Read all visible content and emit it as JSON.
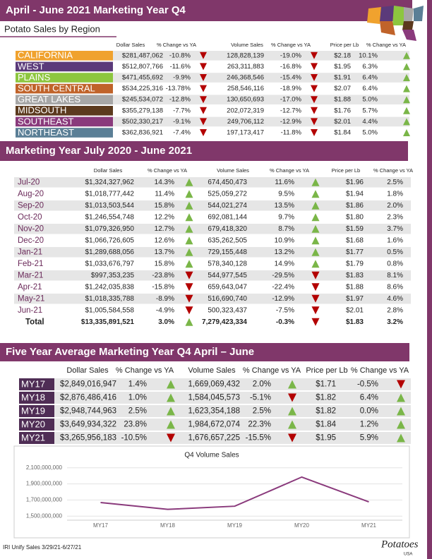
{
  "header": {
    "title": "April - June 2021 Marketing Year Q4"
  },
  "regions": {
    "subtitle": "Potato Sales by Region",
    "columns": [
      "Dollar Sales",
      "% Change vs YA",
      "Volume Sales",
      "% Change vs YA",
      "Price per Lb",
      "% Change vs YA"
    ],
    "rows": [
      {
        "name": "CALIFORNIA",
        "color": "#f0a22e",
        "cells": [
          "$281,487,062",
          "-10.8%",
          "128,828,139",
          "-19.0%",
          "$2.18",
          "10.1%"
        ]
      },
      {
        "name": "WEST",
        "color": "#5b3a7a",
        "cells": [
          "$512,807,766",
          "-11.6%",
          "263,311,883",
          "-16.8%",
          "$1.95",
          "6.3%"
        ]
      },
      {
        "name": "PLAINS",
        "color": "#8dc63f",
        "cells": [
          "$471,455,692",
          "-9.9%",
          "246,368,546",
          "-15.4%",
          "$1.91",
          "6.4%"
        ]
      },
      {
        "name": "SOUTH CENTRAL",
        "color": "#c0632a",
        "cells": [
          "$534,225,316",
          "-13.78%",
          "258,546,116",
          "-18.9%",
          "$2.07",
          "6.4%"
        ]
      },
      {
        "name": "GREAT LAKES",
        "color": "#a7a7a7",
        "cells": [
          "$245,534,072",
          "-12.8%",
          "130,650,693",
          "-17.0%",
          "$1.88",
          "5.0%"
        ]
      },
      {
        "name": "MIDSOUTH",
        "color": "#5c3a1e",
        "cells": [
          "$355,279,138",
          "-7.7%",
          "202,072,319",
          "-12.7%",
          "$1.76",
          "5.7%"
        ]
      },
      {
        "name": "SOUTHEAST",
        "color": "#8a3a7c",
        "cells": [
          "$502,330,217",
          "-9.1%",
          "249,706,112",
          "-12.9%",
          "$2.01",
          "4.4%"
        ]
      },
      {
        "name": "NORTHEAST",
        "color": "#5b7f96",
        "cells": [
          "$362,836,921",
          "-7.4%",
          "197,173,417",
          "-11.8%",
          "$1.84",
          "5.0%"
        ]
      }
    ]
  },
  "marketing_year": {
    "title": "Marketing Year July 2020 - June 2021",
    "columns": [
      "Dollar Sales",
      "% Change vs YA",
      "Volume Sales",
      "% Change vs YA",
      "Price per Lb",
      "% Change vs YA"
    ],
    "rows": [
      {
        "name": "Jul-20",
        "cells": [
          "$1,324,327,962",
          "14.3%",
          "674,450,473",
          "11.6%",
          "$1.96",
          "2.5%"
        ]
      },
      {
        "name": "Aug-20",
        "cells": [
          "$1,018,777,442",
          "11.4%",
          "525,059,272",
          "9.5%",
          "$1.94",
          "1.8%"
        ]
      },
      {
        "name": "Sep-20",
        "cells": [
          "$1,013,503,544",
          "15.8%",
          "544,021,274",
          "13.5%",
          "$1.86",
          "2.0%"
        ]
      },
      {
        "name": "Oct-20",
        "cells": [
          "$1,246,554,748",
          "12.2%",
          "692,081,144",
          "9.7%",
          "$1.80",
          "2.3%"
        ]
      },
      {
        "name": "Nov-20",
        "cells": [
          "$1,079,326,950",
          "12.7%",
          "679,418,320",
          "8.7%",
          "$1.59",
          "3.7%"
        ]
      },
      {
        "name": "Dec-20",
        "cells": [
          "$1,066,726,605",
          "12.6%",
          "635,262,505",
          "10.9%",
          "$1.68",
          "1.6%"
        ]
      },
      {
        "name": "Jan-21",
        "cells": [
          "$1,289,688,056",
          "13.7%",
          "729,155,448",
          "13.2%",
          "$1.77",
          "0.5%"
        ]
      },
      {
        "name": "Feb-21",
        "cells": [
          "$1,033,676,797",
          "15.8%",
          "578,340,128",
          "14.9%",
          "$1.79",
          "0.8%"
        ]
      },
      {
        "name": "Mar-21",
        "cells": [
          "$997,353,235",
          "-23.8%",
          "544,977,545",
          "-29.5%",
          "$1.83",
          "8.1%"
        ]
      },
      {
        "name": "Apr-21",
        "cells": [
          "$1,242,035,838",
          "-15.8%",
          "659,643,047",
          "-22.4%",
          "$1.88",
          "8.6%"
        ]
      },
      {
        "name": "May-21",
        "cells": [
          "$1,018,335,788",
          "-8.9%",
          "516,690,740",
          "-12.9%",
          "$1.97",
          "4.6%"
        ]
      },
      {
        "name": "Jun-21",
        "cells": [
          "$1,005,584,558",
          "-4.9%",
          "500,323,437",
          "-7.5%",
          "$2.01",
          "2.8%"
        ]
      },
      {
        "name": "Total",
        "cells": [
          "$13,335,891,521",
          "3.0%",
          "7,279,423,334",
          "-0.3%",
          "$1.83",
          "3.2%"
        ]
      }
    ]
  },
  "five_year": {
    "title": "Five Year Average Marketing Year Q4 April – June",
    "columns": [
      "Dollar Sales",
      "% Change vs YA",
      "Volume Sales",
      "% Change vs YA",
      "Price per Lb",
      "% Change vs YA"
    ],
    "rows": [
      {
        "name": "MY17",
        "cells": [
          "$2,849,016,947",
          "1.4%",
          "1,669,069,432",
          "2.0%",
          "$1.71",
          "-0.5%"
        ]
      },
      {
        "name": "MY18",
        "cells": [
          "$2,876,486,416",
          "1.0%",
          "1,584,045,573",
          "-5.1%",
          "$1.82",
          "6.4%"
        ]
      },
      {
        "name": "MY19",
        "cells": [
          "$2,948,744,963",
          "2.5%",
          "1,623,354,188",
          "2.5%",
          "$1.82",
          "0.0%"
        ]
      },
      {
        "name": "MY20",
        "cells": [
          "$3,649,934,322",
          "23.8%",
          "1,984,672,074",
          "22.3%",
          "$1.84",
          "1.2%"
        ]
      },
      {
        "name": "MY21",
        "cells": [
          "$3,265,956,183",
          "-10.5%",
          "1,676,657,225",
          "-15.5%",
          "$1.95",
          "5.9%"
        ]
      }
    ]
  },
  "chart_data": {
    "type": "line",
    "title": "Q4 Volume Sales",
    "categories": [
      "MY17",
      "MY18",
      "MY19",
      "MY20",
      "MY21"
    ],
    "values": [
      1669069432,
      1584045573,
      1623354188,
      1984672074,
      1676657225
    ],
    "color": "#8a3a7c",
    "ylim": [
      1450000000,
      2150000000
    ],
    "yticks": [
      {
        "value": 1500000000,
        "label": "1,500,000,000"
      },
      {
        "value": 1700000000,
        "label": "1,700,000,000"
      },
      {
        "value": 1900000000,
        "label": "1,900,000,000"
      },
      {
        "value": 2100000000,
        "label": "2,100,000,000"
      }
    ],
    "grid": true
  },
  "footer": {
    "source": "IRI Unify Sales 3/29/21-6/27/21",
    "logo": "Potatoes",
    "logo_sub": "USA"
  }
}
